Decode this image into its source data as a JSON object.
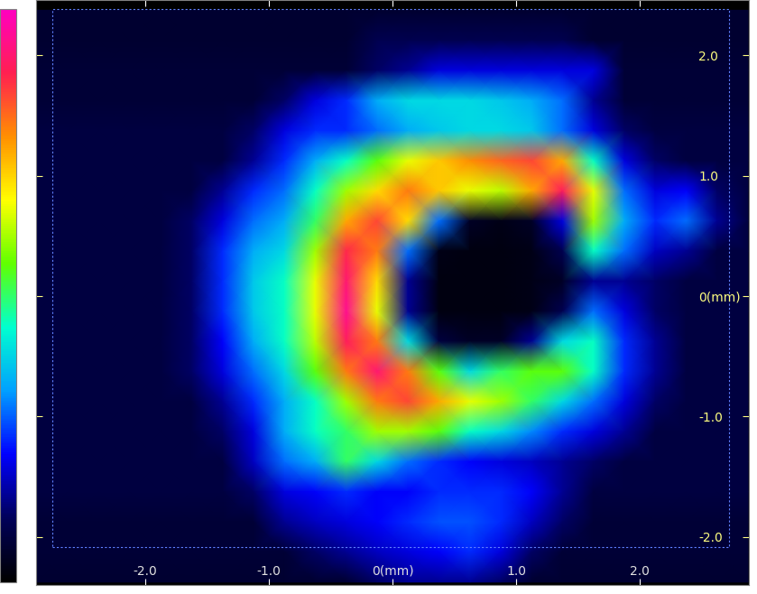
{
  "chart_data": {
    "type": "heatmap",
    "xlim": [
      -2.88,
      2.88
    ],
    "ylim": [
      -2.4,
      2.46
    ],
    "xticks": [
      -2.0,
      -1.0,
      {
        "value": 0,
        "label": "0(mm)"
      },
      1.0,
      2.0
    ],
    "yticks": [
      2.0,
      1.0,
      {
        "value": 0,
        "label": "0(mm)"
      },
      -1.0,
      -2.0
    ],
    "grid": false,
    "x_range": [
      -3.0,
      3.0
    ],
    "y_range": [
      2.5,
      -2.5
    ],
    "colorbar": {
      "range": [
        0,
        100
      ]
    },
    "cells": [
      [
        6,
        6,
        6,
        6,
        6,
        6,
        6,
        6,
        6,
        6,
        6,
        6,
        6,
        6,
        6,
        6,
        6,
        6,
        6,
        6,
        6,
        6,
        6,
        6
      ],
      [
        6,
        6,
        6,
        6,
        6,
        6,
        6,
        6,
        6,
        6,
        6,
        10,
        10,
        10,
        10,
        10,
        10,
        10,
        6,
        6,
        6,
        6,
        6,
        6
      ],
      [
        7,
        7,
        7,
        7,
        7,
        7,
        7,
        7,
        7,
        7,
        7,
        12,
        15,
        20,
        20,
        20,
        20,
        20,
        20,
        7,
        7,
        7,
        7,
        7
      ],
      [
        7,
        7,
        7,
        7,
        7,
        7,
        7,
        7,
        12,
        20,
        25,
        35,
        40,
        40,
        40,
        38,
        35,
        30,
        15,
        7,
        7,
        7,
        7,
        7
      ],
      [
        8,
        8,
        8,
        8,
        8,
        8,
        8,
        12,
        20,
        25,
        25,
        30,
        35,
        38,
        40,
        40,
        38,
        30,
        20,
        12,
        8,
        8,
        8,
        8
      ],
      [
        8,
        8,
        8,
        8,
        8,
        8,
        8,
        15,
        25,
        35,
        45,
        55,
        65,
        72,
        78,
        82,
        85,
        75,
        45,
        20,
        12,
        8,
        8,
        8
      ],
      [
        8,
        8,
        8,
        8,
        8,
        8,
        15,
        25,
        30,
        45,
        60,
        70,
        80,
        72,
        65,
        62,
        75,
        90,
        65,
        30,
        20,
        22,
        12,
        8
      ],
      [
        8,
        8,
        8,
        8,
        8,
        12,
        20,
        30,
        35,
        50,
        75,
        85,
        70,
        30,
        5,
        3,
        5,
        20,
        60,
        35,
        25,
        30,
        15,
        8
      ],
      [
        8,
        8,
        8,
        8,
        8,
        12,
        25,
        35,
        40,
        60,
        88,
        80,
        30,
        3,
        2,
        2,
        3,
        10,
        45,
        30,
        18,
        15,
        8,
        8
      ],
      [
        8,
        8,
        8,
        8,
        8,
        12,
        25,
        38,
        45,
        65,
        92,
        70,
        15,
        2,
        2,
        2,
        3,
        5,
        15,
        15,
        12,
        8,
        8,
        8
      ],
      [
        8,
        8,
        8,
        8,
        8,
        12,
        25,
        38,
        45,
        65,
        95,
        65,
        15,
        2,
        2,
        2,
        3,
        10,
        30,
        20,
        12,
        8,
        8,
        8
      ],
      [
        8,
        8,
        8,
        8,
        8,
        12,
        22,
        35,
        45,
        62,
        90,
        80,
        40,
        8,
        5,
        5,
        15,
        40,
        45,
        25,
        15,
        8,
        8,
        8
      ],
      [
        8,
        8,
        8,
        8,
        8,
        12,
        20,
        30,
        40,
        55,
        80,
        92,
        80,
        55,
        40,
        50,
        55,
        55,
        45,
        25,
        15,
        8,
        8,
        8
      ],
      [
        8,
        8,
        8,
        8,
        8,
        8,
        15,
        25,
        35,
        45,
        60,
        80,
        85,
        75,
        65,
        60,
        50,
        40,
        30,
        20,
        12,
        8,
        8,
        8
      ],
      [
        8,
        8,
        8,
        8,
        8,
        8,
        12,
        20,
        35,
        45,
        50,
        60,
        60,
        55,
        45,
        40,
        32,
        25,
        20,
        15,
        8,
        8,
        8,
        8
      ],
      [
        8,
        8,
        8,
        8,
        8,
        8,
        8,
        18,
        30,
        35,
        50,
        40,
        30,
        25,
        22,
        20,
        18,
        15,
        12,
        8,
        8,
        8,
        8,
        8
      ],
      [
        8,
        8,
        8,
        8,
        8,
        8,
        8,
        12,
        20,
        22,
        25,
        22,
        22,
        25,
        25,
        25,
        22,
        15,
        8,
        8,
        8,
        8,
        8,
        8
      ],
      [
        7,
        7,
        7,
        7,
        7,
        7,
        7,
        7,
        15,
        18,
        20,
        22,
        25,
        28,
        28,
        25,
        18,
        12,
        7,
        7,
        7,
        7,
        7,
        7
      ],
      [
        7,
        7,
        7,
        7,
        7,
        7,
        7,
        7,
        7,
        12,
        15,
        18,
        20,
        22,
        25,
        20,
        12,
        7,
        7,
        7,
        7,
        7,
        7,
        7
      ],
      [
        6,
        6,
        6,
        6,
        6,
        6,
        6,
        6,
        6,
        6,
        6,
        12,
        15,
        15,
        15,
        12,
        6,
        6,
        6,
        6,
        6,
        6,
        6,
        6
      ]
    ]
  }
}
